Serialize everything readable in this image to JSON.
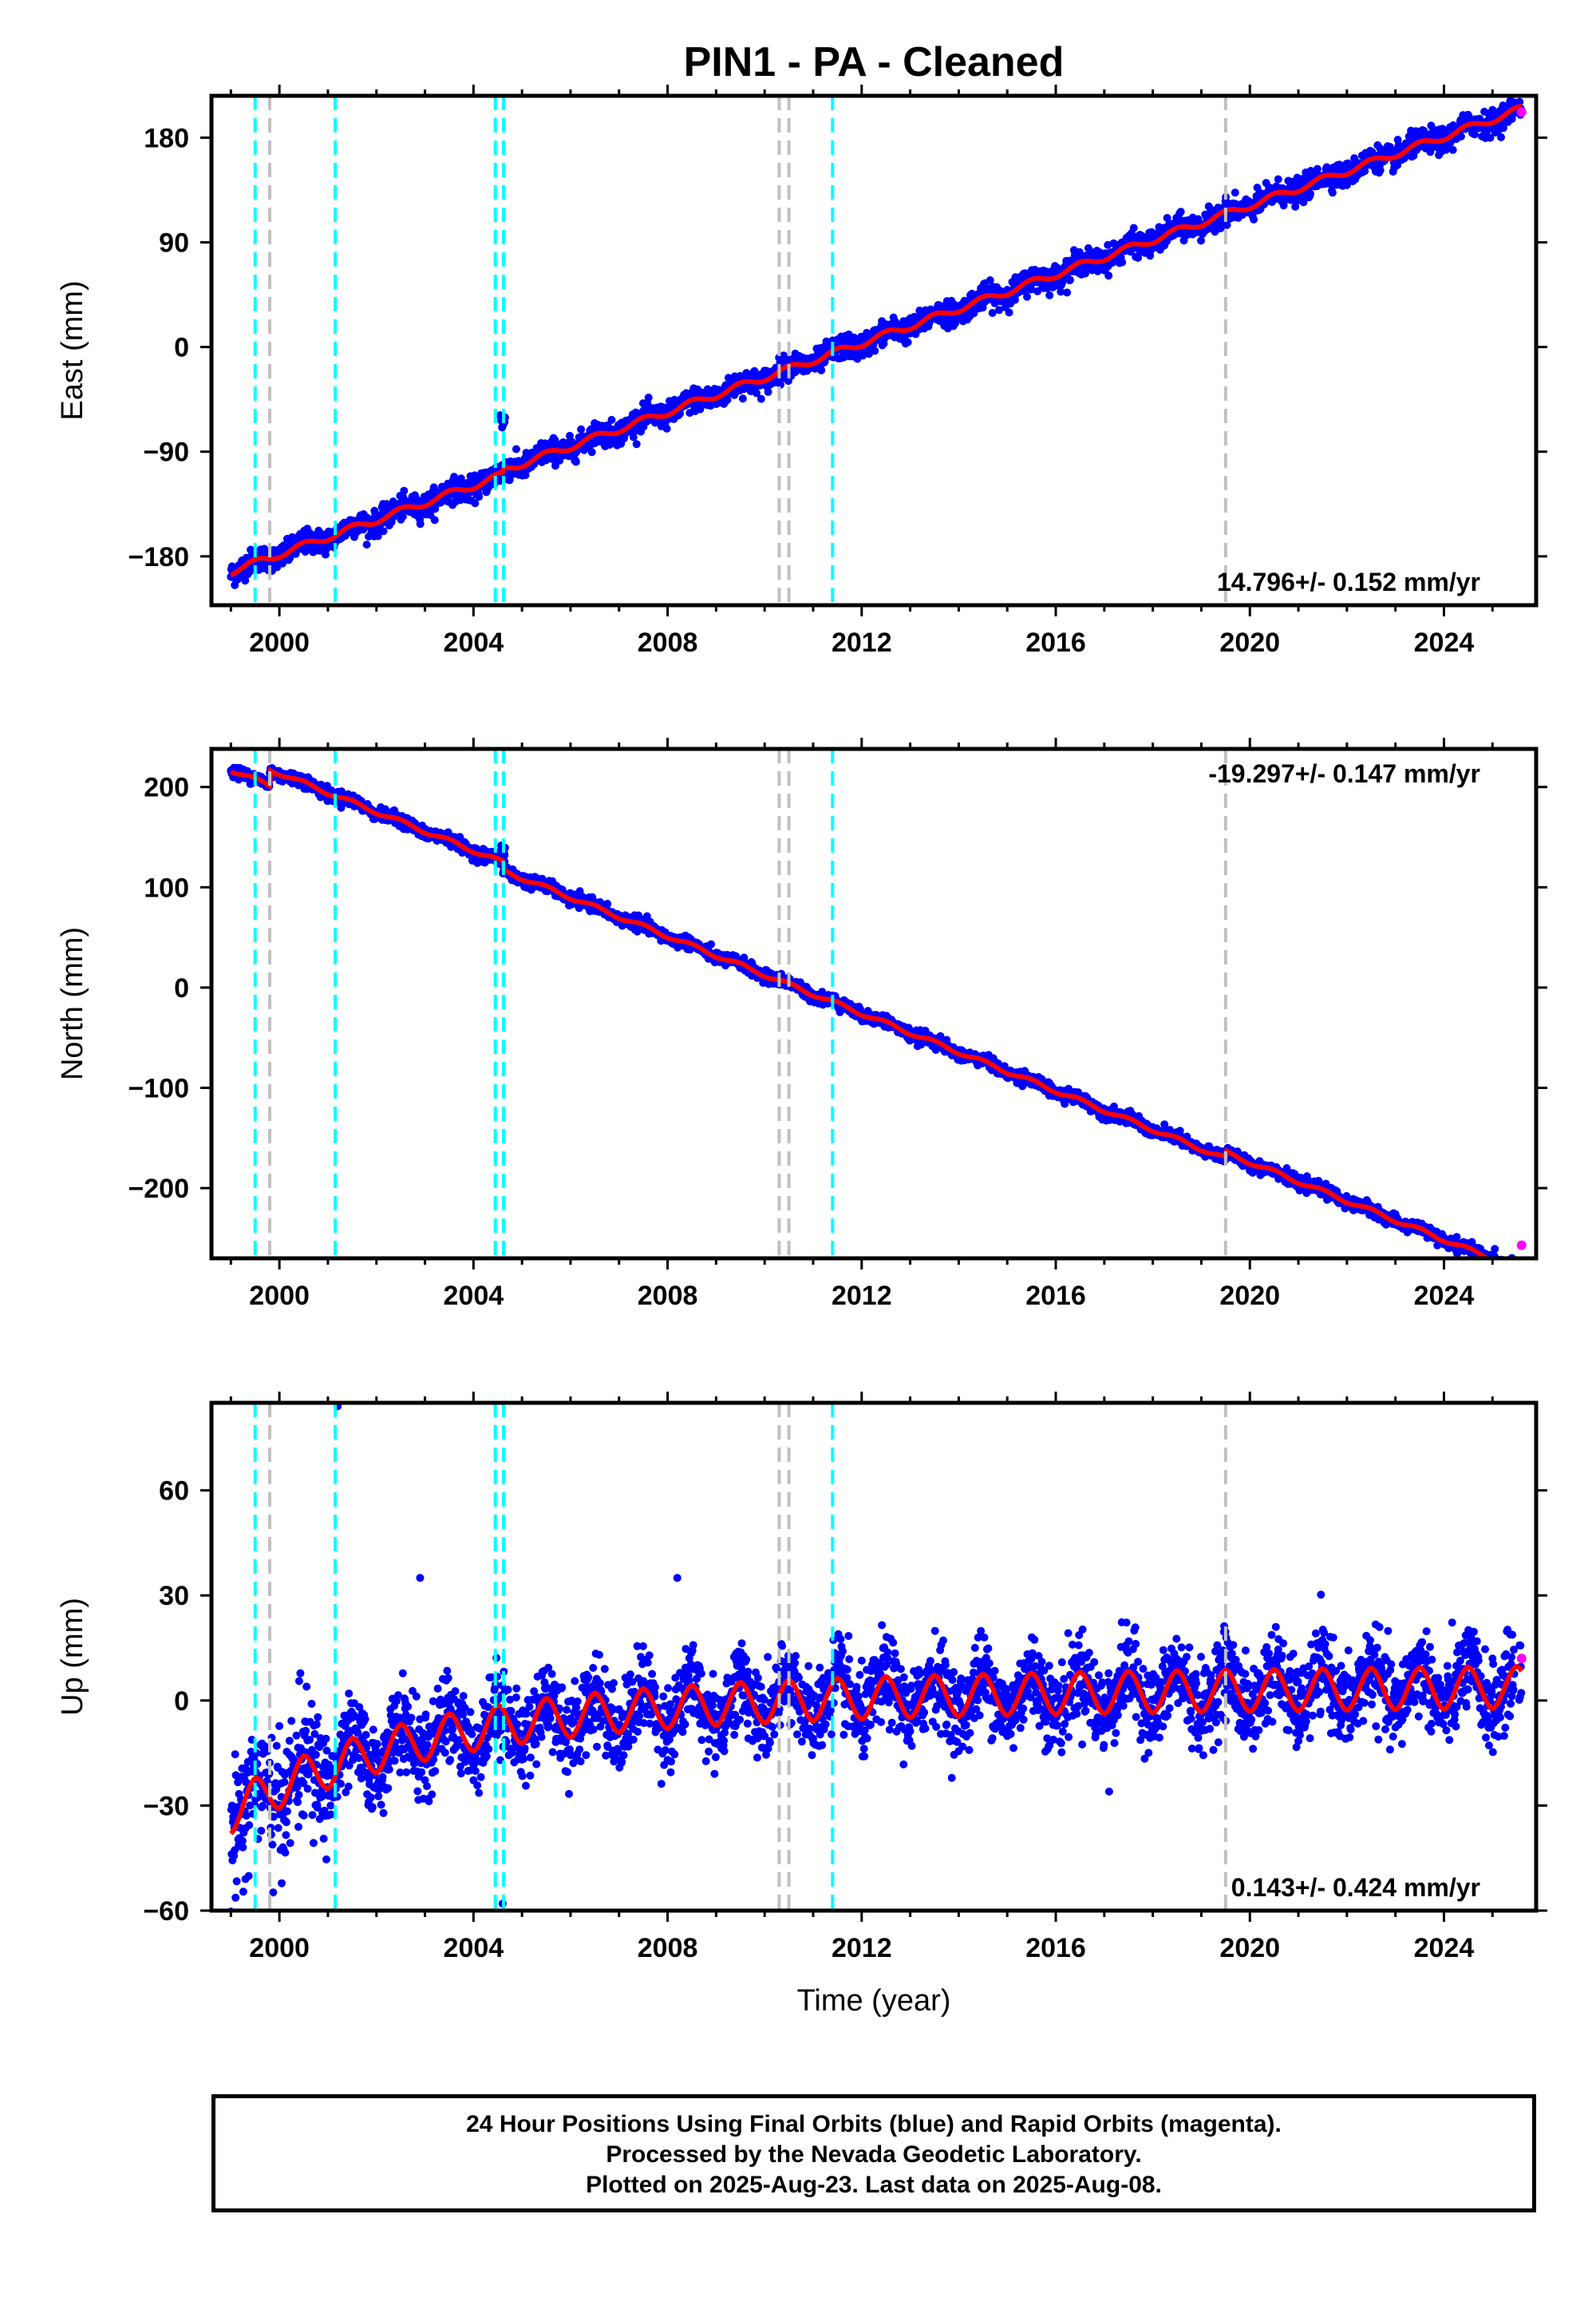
{
  "figure": {
    "title": "PIN1  - PA - Cleaned",
    "xlabel": "Time (year)",
    "caption": [
      "24 Hour Positions Using Final Orbits (blue) and Rapid Orbits (magenta).",
      "Processed by the Nevada Geodetic Laboratory.",
      "Plotted on 2025-Aug-23. Last data on 2025-Aug-08."
    ],
    "colors": {
      "final_orbits": "#0000ff",
      "rapid_orbits": "#ff00ff",
      "model_fit": "#ff0000",
      "equipment_change_lines": "#00ffff",
      "other_event_lines": "#c0c0c0"
    }
  },
  "chart_data": [
    {
      "type": "scatter",
      "component": "east",
      "ylabel": "East (mm)",
      "xlim": [
        1998.6,
        2025.9
      ],
      "ylim": [
        -222,
        216
      ],
      "x_ticks": [
        2000,
        2004,
        2008,
        2012,
        2016,
        2020,
        2024
      ],
      "y_ticks": [
        -180,
        -90,
        0,
        90,
        180
      ],
      "rate_label": "14.796+/- 0.152 mm/yr",
      "rate_label_position": "bottom-right",
      "rate": 14.796,
      "start": {
        "x": 1999.0,
        "y": -193
      },
      "seasonal_amplitude": 3,
      "noise_sd": 5,
      "offsets": [
        {
          "x": 2004.6,
          "dy": 4
        }
      ],
      "transient": {
        "x": [
          2004.55,
          2004.65
        ],
        "y": -62
      },
      "rapid_points": [
        {
          "x": 2025.6,
          "y": 202
        }
      ],
      "vlines_cyan": [
        1999.5,
        2001.15,
        2004.45,
        2004.62
      ],
      "vlines_gray": [
        1999.8,
        2010.3,
        2010.5
      ],
      "vlines_cyan_2": [
        2011.4
      ],
      "vlines_gray_2": [
        2019.5
      ]
    },
    {
      "type": "scatter",
      "component": "north",
      "ylabel": "North (mm)",
      "xlim": [
        1998.6,
        2025.9
      ],
      "ylim": [
        -270,
        238
      ],
      "x_ticks": [
        2000,
        2004,
        2008,
        2012,
        2016,
        2020,
        2024
      ],
      "y_ticks": [
        -200,
        -100,
        0,
        100,
        200
      ],
      "rate_label": "-19.297+/- 0.147 mm/yr",
      "rate_label_position": "top-right",
      "rate": -19.297,
      "start": {
        "x": 1999.0,
        "y": 217
      },
      "seasonal_amplitude": 2,
      "noise_sd": 3,
      "offsets": [
        {
          "x": 1999.8,
          "dy": 16
        },
        {
          "x": 2004.6,
          "dy": -8
        },
        {
          "x": 2019.5,
          "dy": 6
        }
      ],
      "transient": {
        "x": [
          2004.55,
          2004.65
        ],
        "y": 135
      },
      "rapid_points": [
        {
          "x": 2025.6,
          "y": -257
        }
      ],
      "vlines_cyan": [
        1999.5,
        2001.15,
        2004.45,
        2004.62
      ],
      "vlines_gray": [
        1999.8,
        2010.3,
        2010.5
      ],
      "vlines_cyan_2": [
        2011.4
      ],
      "vlines_gray_2": [
        2019.5
      ]
    },
    {
      "type": "scatter",
      "component": "up",
      "ylabel": "Up (mm)",
      "xlim": [
        1998.6,
        2025.9
      ],
      "ylim": [
        -60,
        85
      ],
      "x_ticks": [
        2000,
        2004,
        2008,
        2012,
        2016,
        2020,
        2024
      ],
      "y_ticks": [
        -60,
        -30,
        0,
        30,
        60
      ],
      "rate_label": "0.143+/- 0.424 mm/yr",
      "rate_label_position": "bottom-right",
      "rate": 0.143,
      "start": {
        "x": 1999.0,
        "y": -32
      },
      "seasonal_amplitude": 5,
      "noise_sd": 6,
      "offsets": [],
      "trend_shape": "saturating",
      "outliers": [
        {
          "x": 2001.2,
          "y": 84
        },
        {
          "x": 2002.9,
          "y": 35
        },
        {
          "x": 2008.2,
          "y": 35
        },
        {
          "x": 2004.6,
          "y": -58
        },
        {
          "x": 1999.3,
          "y": -51
        },
        {
          "x": 2017.1,
          "y": -26
        }
      ],
      "rapid_points": [
        {
          "x": 2025.6,
          "y": 12
        }
      ],
      "vlines_cyan": [
        1999.5,
        2001.15,
        2004.45,
        2004.62
      ],
      "vlines_gray": [
        1999.8,
        2010.3,
        2010.5
      ],
      "vlines_cyan_2": [
        2011.4
      ],
      "vlines_gray_2": [
        2019.5
      ]
    }
  ]
}
